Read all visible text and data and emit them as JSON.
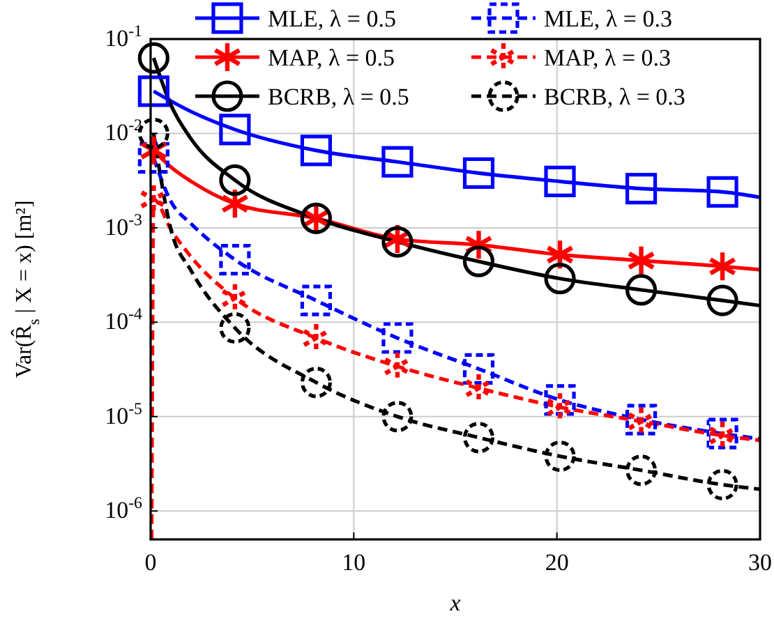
{
  "chart_data": {
    "type": "line",
    "xlabel": "x",
    "ylabel": "Var(R̂$_{s}$ | X = x) [m²]",
    "xlim": [
      0,
      30
    ],
    "xticks": [
      0,
      10,
      20,
      30
    ],
    "ylim": [
      5e-07,
      0.1
    ],
    "yticks": [
      {
        "value": 1e-06,
        "label": "10$^{-6}$"
      },
      {
        "value": 1e-05,
        "label": "10$^{-5}$"
      },
      {
        "value": 0.0001,
        "label": "10$^{-4}$"
      },
      {
        "value": 0.001,
        "label": "10$^{-3}$"
      },
      {
        "value": 0.01,
        "label": "10$^{-2}$"
      },
      {
        "value": 0.1,
        "label": "10$^{-1}$"
      }
    ],
    "log": "y",
    "grid": true,
    "legend": "top",
    "series": [
      {
        "color": "#0000ff",
        "line_style": "solid",
        "marker": "none",
        "x": [
          0.15,
          1,
          2,
          4.15,
          8.15,
          12.15,
          16.15,
          20.15,
          24.15,
          28.15,
          30
        ],
        "values": [
          0.028,
          0.022,
          0.017,
          0.011,
          0.0066,
          0.005,
          0.0038,
          0.0031,
          0.0026,
          0.0024,
          0.0021
        ]
      },
      {
        "color": "#0000ff",
        "line_style": "dashed",
        "marker": "none",
        "x": [
          0.15,
          1,
          2,
          4.15,
          8.15,
          12.15,
          16.15,
          20.15,
          24.15,
          28.15,
          30
        ],
        "values": [
          0.0055,
          0.0019,
          0.0011,
          0.00046,
          0.00017,
          6.8e-05,
          3.2e-05,
          1.5e-05,
          9.3e-06,
          6.6e-06,
          5.8e-06
        ]
      },
      {
        "color": "#ff0000",
        "line_style": "solid",
        "marker": "none",
        "x": [
          0.15,
          1,
          2,
          4.15,
          8.15,
          12.15,
          16.15,
          20.15,
          24.15,
          28.15,
          30
        ],
        "values": [
          0.0066,
          0.0044,
          0.0031,
          0.0018,
          0.00126,
          0.00076,
          0.00066,
          0.00052,
          0.00045,
          0.00039,
          0.00036
        ]
      },
      {
        "color": "#ff0000",
        "line_style": "dashed",
        "marker": "none",
        "x": [
          0.05,
          0.15,
          1,
          2,
          4.15,
          8.15,
          12.15,
          16.15,
          20.15,
          24.15,
          28.15,
          30
        ],
        "values": [
          5e-07,
          0.002,
          0.00096,
          0.00049,
          0.00018,
          6.8e-05,
          3.4e-05,
          2e-05,
          1.26e-05,
          8.9e-06,
          6.3e-06,
          5.6e-06
        ]
      },
      {
        "color": "#000000",
        "line_style": "solid",
        "marker": "none",
        "x": [
          0.15,
          1,
          2,
          4.15,
          8.15,
          12.15,
          16.15,
          20.15,
          24.15,
          28.15,
          30
        ],
        "values": [
          0.063,
          0.02,
          0.0087,
          0.0032,
          0.00126,
          0.00071,
          0.00044,
          0.00029,
          0.00022,
          0.00017,
          0.00015
        ]
      },
      {
        "color": "#000000",
        "line_style": "dashed",
        "marker": "none",
        "x": [
          0.15,
          1,
          2,
          4.15,
          8.15,
          12.15,
          16.15,
          20.15,
          24.15,
          28.15,
          30
        ],
        "values": [
          0.01,
          0.00096,
          0.00035,
          8.7e-05,
          2.3e-05,
          1e-05,
          6e-06,
          3.8e-06,
          2.7e-06,
          1.9e-06,
          1.7e-06
        ]
      },
      {
        "type": "scatter",
        "name": "MLE, λ = 0.5",
        "color": "#0000ff",
        "line_style": "solid",
        "marker": "square",
        "x": [
          0.15,
          4.15,
          8.15,
          12.15,
          16.15,
          20.15,
          24.15,
          28.15
        ],
        "values": [
          0.028,
          0.011,
          0.0066,
          0.005,
          0.0038,
          0.0031,
          0.0026,
          0.0024
        ]
      },
      {
        "type": "scatter",
        "name": "MLE, λ = 0.3",
        "color": "#0000ff",
        "line_style": "dashed",
        "marker": "square",
        "x": [
          0.15,
          4.15,
          8.15,
          12.15,
          16.15,
          20.15,
          24.15,
          28.15
        ],
        "values": [
          0.0055,
          0.00046,
          0.00017,
          6.8e-05,
          3.2e-05,
          1.5e-05,
          9.3e-06,
          6.6e-06
        ]
      },
      {
        "type": "scatter",
        "name": "MAP, λ = 0.5",
        "color": "#ff0000",
        "line_style": "solid",
        "marker": "cross",
        "x": [
          0.15,
          4.15,
          8.15,
          12.15,
          16.15,
          20.15,
          24.15,
          28.15
        ],
        "values": [
          0.0066,
          0.0018,
          0.00126,
          0.00076,
          0.00066,
          0.00052,
          0.00045,
          0.00039
        ]
      },
      {
        "type": "scatter",
        "name": "MAP, λ = 0.3",
        "color": "#ff0000",
        "line_style": "dashed",
        "marker": "cross",
        "x": [
          0.15,
          4.15,
          8.15,
          12.15,
          16.15,
          20.15,
          24.15,
          28.15
        ],
        "values": [
          0.002,
          0.00018,
          6.8e-05,
          3.4e-05,
          2e-05,
          1.26e-05,
          8.9e-06,
          6.3e-06
        ]
      },
      {
        "type": "scatter",
        "name": "BCRB, λ = 0.5",
        "color": "#000000",
        "line_style": "solid",
        "marker": "circle",
        "x": [
          0.15,
          4.15,
          8.15,
          12.15,
          16.15,
          20.15,
          24.15,
          28.15
        ],
        "values": [
          0.063,
          0.0032,
          0.00126,
          0.00071,
          0.00044,
          0.00029,
          0.00022,
          0.00017
        ]
      },
      {
        "type": "scatter",
        "name": "BCRB, λ = 0.3",
        "color": "#000000",
        "line_style": "dashed",
        "marker": "circle",
        "x": [
          0.15,
          4.15,
          8.15,
          12.15,
          16.15,
          20.15,
          24.15,
          28.15
        ],
        "values": [
          0.01,
          8.7e-05,
          2.3e-05,
          1e-05,
          6e-06,
          3.8e-06,
          2.7e-06,
          1.9e-06
        ]
      }
    ]
  }
}
